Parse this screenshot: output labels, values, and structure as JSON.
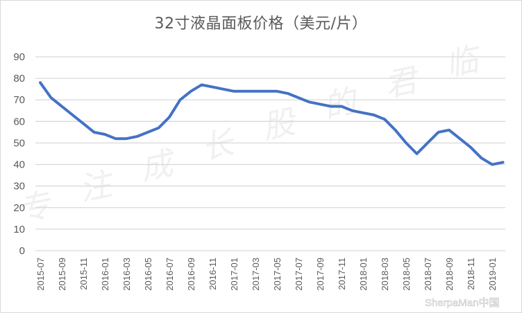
{
  "chart_data": {
    "type": "line",
    "title": "32寸液晶面板价格（美元/片）",
    "xlabel": "",
    "ylabel": "",
    "ylim": [
      0,
      90
    ],
    "yticks": [
      0,
      10,
      20,
      30,
      40,
      50,
      60,
      70,
      80,
      90
    ],
    "grid": true,
    "legend": null,
    "x_tick_labels": [
      "2015-07",
      "2015-09",
      "2015-11",
      "2016-01",
      "2016-03",
      "2016-05",
      "2016-07",
      "2016-09",
      "2016-11",
      "2017-01",
      "2017-03",
      "2017-05",
      "2017-07",
      "2017-09",
      "2017-11",
      "2018-01",
      "2018-03",
      "2018-05",
      "2018-07",
      "2018-09",
      "2018-11",
      "2019-01"
    ],
    "x": [
      "2015-07",
      "2015-08",
      "2015-09",
      "2015-10",
      "2015-11",
      "2015-12",
      "2016-01",
      "2016-02",
      "2016-03",
      "2016-04",
      "2016-05",
      "2016-06",
      "2016-07",
      "2016-08",
      "2016-09",
      "2016-10",
      "2016-11",
      "2016-12",
      "2017-01",
      "2017-02",
      "2017-03",
      "2017-04",
      "2017-05",
      "2017-06",
      "2017-07",
      "2017-08",
      "2017-09",
      "2017-10",
      "2017-11",
      "2017-12",
      "2018-01",
      "2018-02",
      "2018-03",
      "2018-04",
      "2018-05",
      "2018-06",
      "2018-07",
      "2018-08",
      "2018-09",
      "2018-10",
      "2018-11",
      "2018-12",
      "2019-01",
      "2019-02"
    ],
    "series": [
      {
        "name": "32寸液晶面板价格",
        "color": "#4472c4",
        "values": [
          78,
          71,
          67,
          63,
          59,
          55,
          54,
          52,
          52,
          53,
          55,
          57,
          62,
          70,
          74,
          77,
          76,
          75,
          74,
          74,
          74,
          74,
          74,
          73,
          71,
          69,
          68,
          67,
          67,
          65,
          64,
          63,
          61,
          56,
          50,
          45,
          50,
          55,
          56,
          52,
          48,
          43,
          40,
          41
        ]
      }
    ]
  },
  "watermarks": {
    "calligraphy": "专注成长股的君临",
    "corner": "SherpaMan中国"
  },
  "colors": {
    "line": "#4472c4",
    "grid": "#d9d9d9",
    "text": "#595959"
  }
}
